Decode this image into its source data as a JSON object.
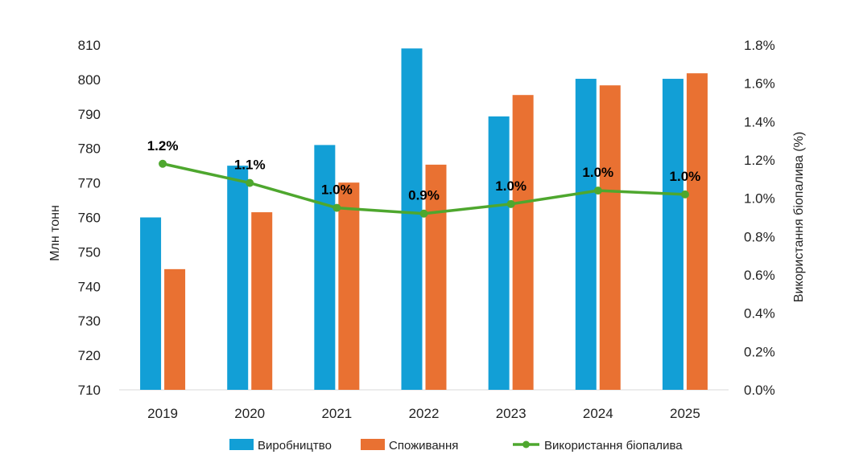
{
  "chart_data": {
    "type": "bar+line",
    "categories": [
      "2019",
      "2020",
      "2021",
      "2022",
      "2023",
      "2024",
      "2025"
    ],
    "series": [
      {
        "name": "Виробництво",
        "type": "bar",
        "axis": "left",
        "color": "#129fd6",
        "values": [
          760,
          775,
          781,
          809,
          789.3,
          800.2,
          800.2
        ]
      },
      {
        "name": "Споживання",
        "type": "bar",
        "axis": "left",
        "color": "#e97132",
        "values": [
          745,
          761.5,
          770.1,
          775.3,
          795.5,
          798.3,
          801.8
        ]
      },
      {
        "name": "Використання біопалива",
        "type": "line",
        "axis": "right",
        "color": "#4ea72e",
        "values": [
          1.18,
          1.08,
          0.95,
          0.92,
          0.97,
          1.04,
          1.02
        ],
        "labels": [
          "1.2%",
          "1.1%",
          "1.0%",
          "0.9%",
          "1.0%",
          "1.0%",
          "1.0%"
        ]
      }
    ],
    "ylabel": "Млн тонн",
    "y2label": "Використання біопалива (%)",
    "ylim": [
      710,
      810
    ],
    "yticks": [
      "710",
      "720",
      "730",
      "740",
      "750",
      "760",
      "770",
      "780",
      "790",
      "800",
      "810"
    ],
    "y2lim": [
      0,
      1.8
    ],
    "y2ticks": [
      "0.0%",
      "0.2%",
      "0.4%",
      "0.6%",
      "0.8%",
      "1.0%",
      "1.2%",
      "1.4%",
      "1.6%",
      "1.8%"
    ],
    "grid": false,
    "legend_position": "bottom"
  }
}
